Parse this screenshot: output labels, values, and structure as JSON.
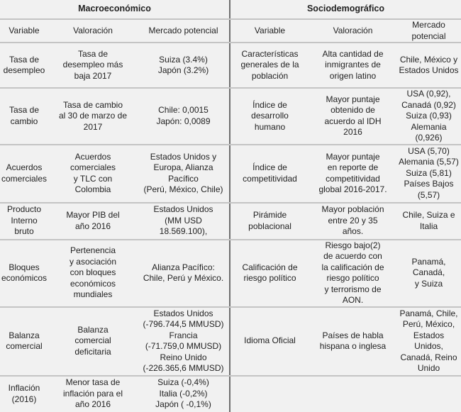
{
  "groups": {
    "left": "Macroeconómico",
    "right": "Sociodemográfico"
  },
  "columns": {
    "variable": "Variable",
    "valoracion": "Valoración",
    "mercado": "Mercado potencial"
  },
  "rows": [
    {
      "l_var": "Tasa de\ndesempleo",
      "l_val": "Tasa de\ndesempleo más\nbaja 2017",
      "l_mer": "Suiza (3.4%)\nJapón (3.2%)",
      "r_var": "Características\ngenerales de la\npoblación",
      "r_val": "Alta cantidad de\ninmigrantes de\norigen latino",
      "r_mer": "Chile, México y\nEstados Unidos"
    },
    {
      "l_var": "Tasa de\ncambio",
      "l_val": "Tasa de cambio\nal 30 de marzo de\n2017",
      "l_mer": "Chile: 0,0015\nJapón: 0,0089",
      "r_var": "Índice de\ndesarrollo\nhumano",
      "r_val": "Mayor puntaje\nobtenido de\nacuerdo al IDH\n2016",
      "r_mer": "USA (0,92),\nCanadá (0,92)\nSuiza (0,93)\nAlemania (0,926)"
    },
    {
      "l_var": "Acuerdos\ncomerciales",
      "l_val": "Acuerdos\ncomerciales\ny TLC con\nColombia",
      "l_mer": "Estados Unidos y\nEuropa, Alianza\nPacífico\n(Perú, México, Chile)",
      "r_var": "Índice de\ncompetitividad",
      "r_val": "Mayor puntaje\nen reporte de\ncompetitividad\nglobal 2016-2017.",
      "r_mer": "USA (5,70)\nAlemania (5,57)\nSuiza (5,81)\nPaíses Bajos\n(5,57)"
    },
    {
      "l_var": "Producto\nInterno\nbruto",
      "l_val": "Mayor PIB del\naño 2016",
      "l_mer": "Estados Unidos\n(MM USD\n18.569.100),",
      "r_var": "Pirámide\npoblacional",
      "r_val": "Mayor población\nentre 20 y 35\naños.",
      "r_mer": "Chile, Suiza e\nItalia"
    },
    {
      "l_var": "Bloques\neconómicos",
      "l_val": "Pertenencia\ny asociación\ncon bloques\neconómicos\nmundiales",
      "l_mer": "Alianza Pacífico:\nChile, Perú y México.",
      "r_var": "Calificación de\nriesgo político",
      "r_val": "Riesgo bajo(2)\nde acuerdo con\nla calificación de\nriesgo político\ny terrorismo de\nAON.",
      "r_mer": "Panamá, Canadá,\ny Suiza"
    },
    {
      "l_var": "Balanza\ncomercial",
      "l_val": "Balanza\ncomercial\ndeficitaria",
      "l_mer": "Estados Unidos\n(-796.744,5 MMUSD)\nFrancia\n(-71.759,0 MMUSD)\nReino Unido\n(-226.365,6 MMUSD)",
      "r_var": "Idioma Oficial",
      "r_val": "Países de habla\nhispana o inglesa",
      "r_mer": "Panamá, Chile,\nPerú, México,\nEstados Unidos,\nCanadá, Reino\nUnido"
    },
    {
      "l_var": "Inflación\n(2016)",
      "l_val": "Menor tasa de\ninflación para el\naño 2016",
      "l_mer": "Suiza (-0,4%)\nItalia (-0,2%)\nJapón ( -0,1%)",
      "r_var": "",
      "r_val": "",
      "r_mer": ""
    }
  ]
}
